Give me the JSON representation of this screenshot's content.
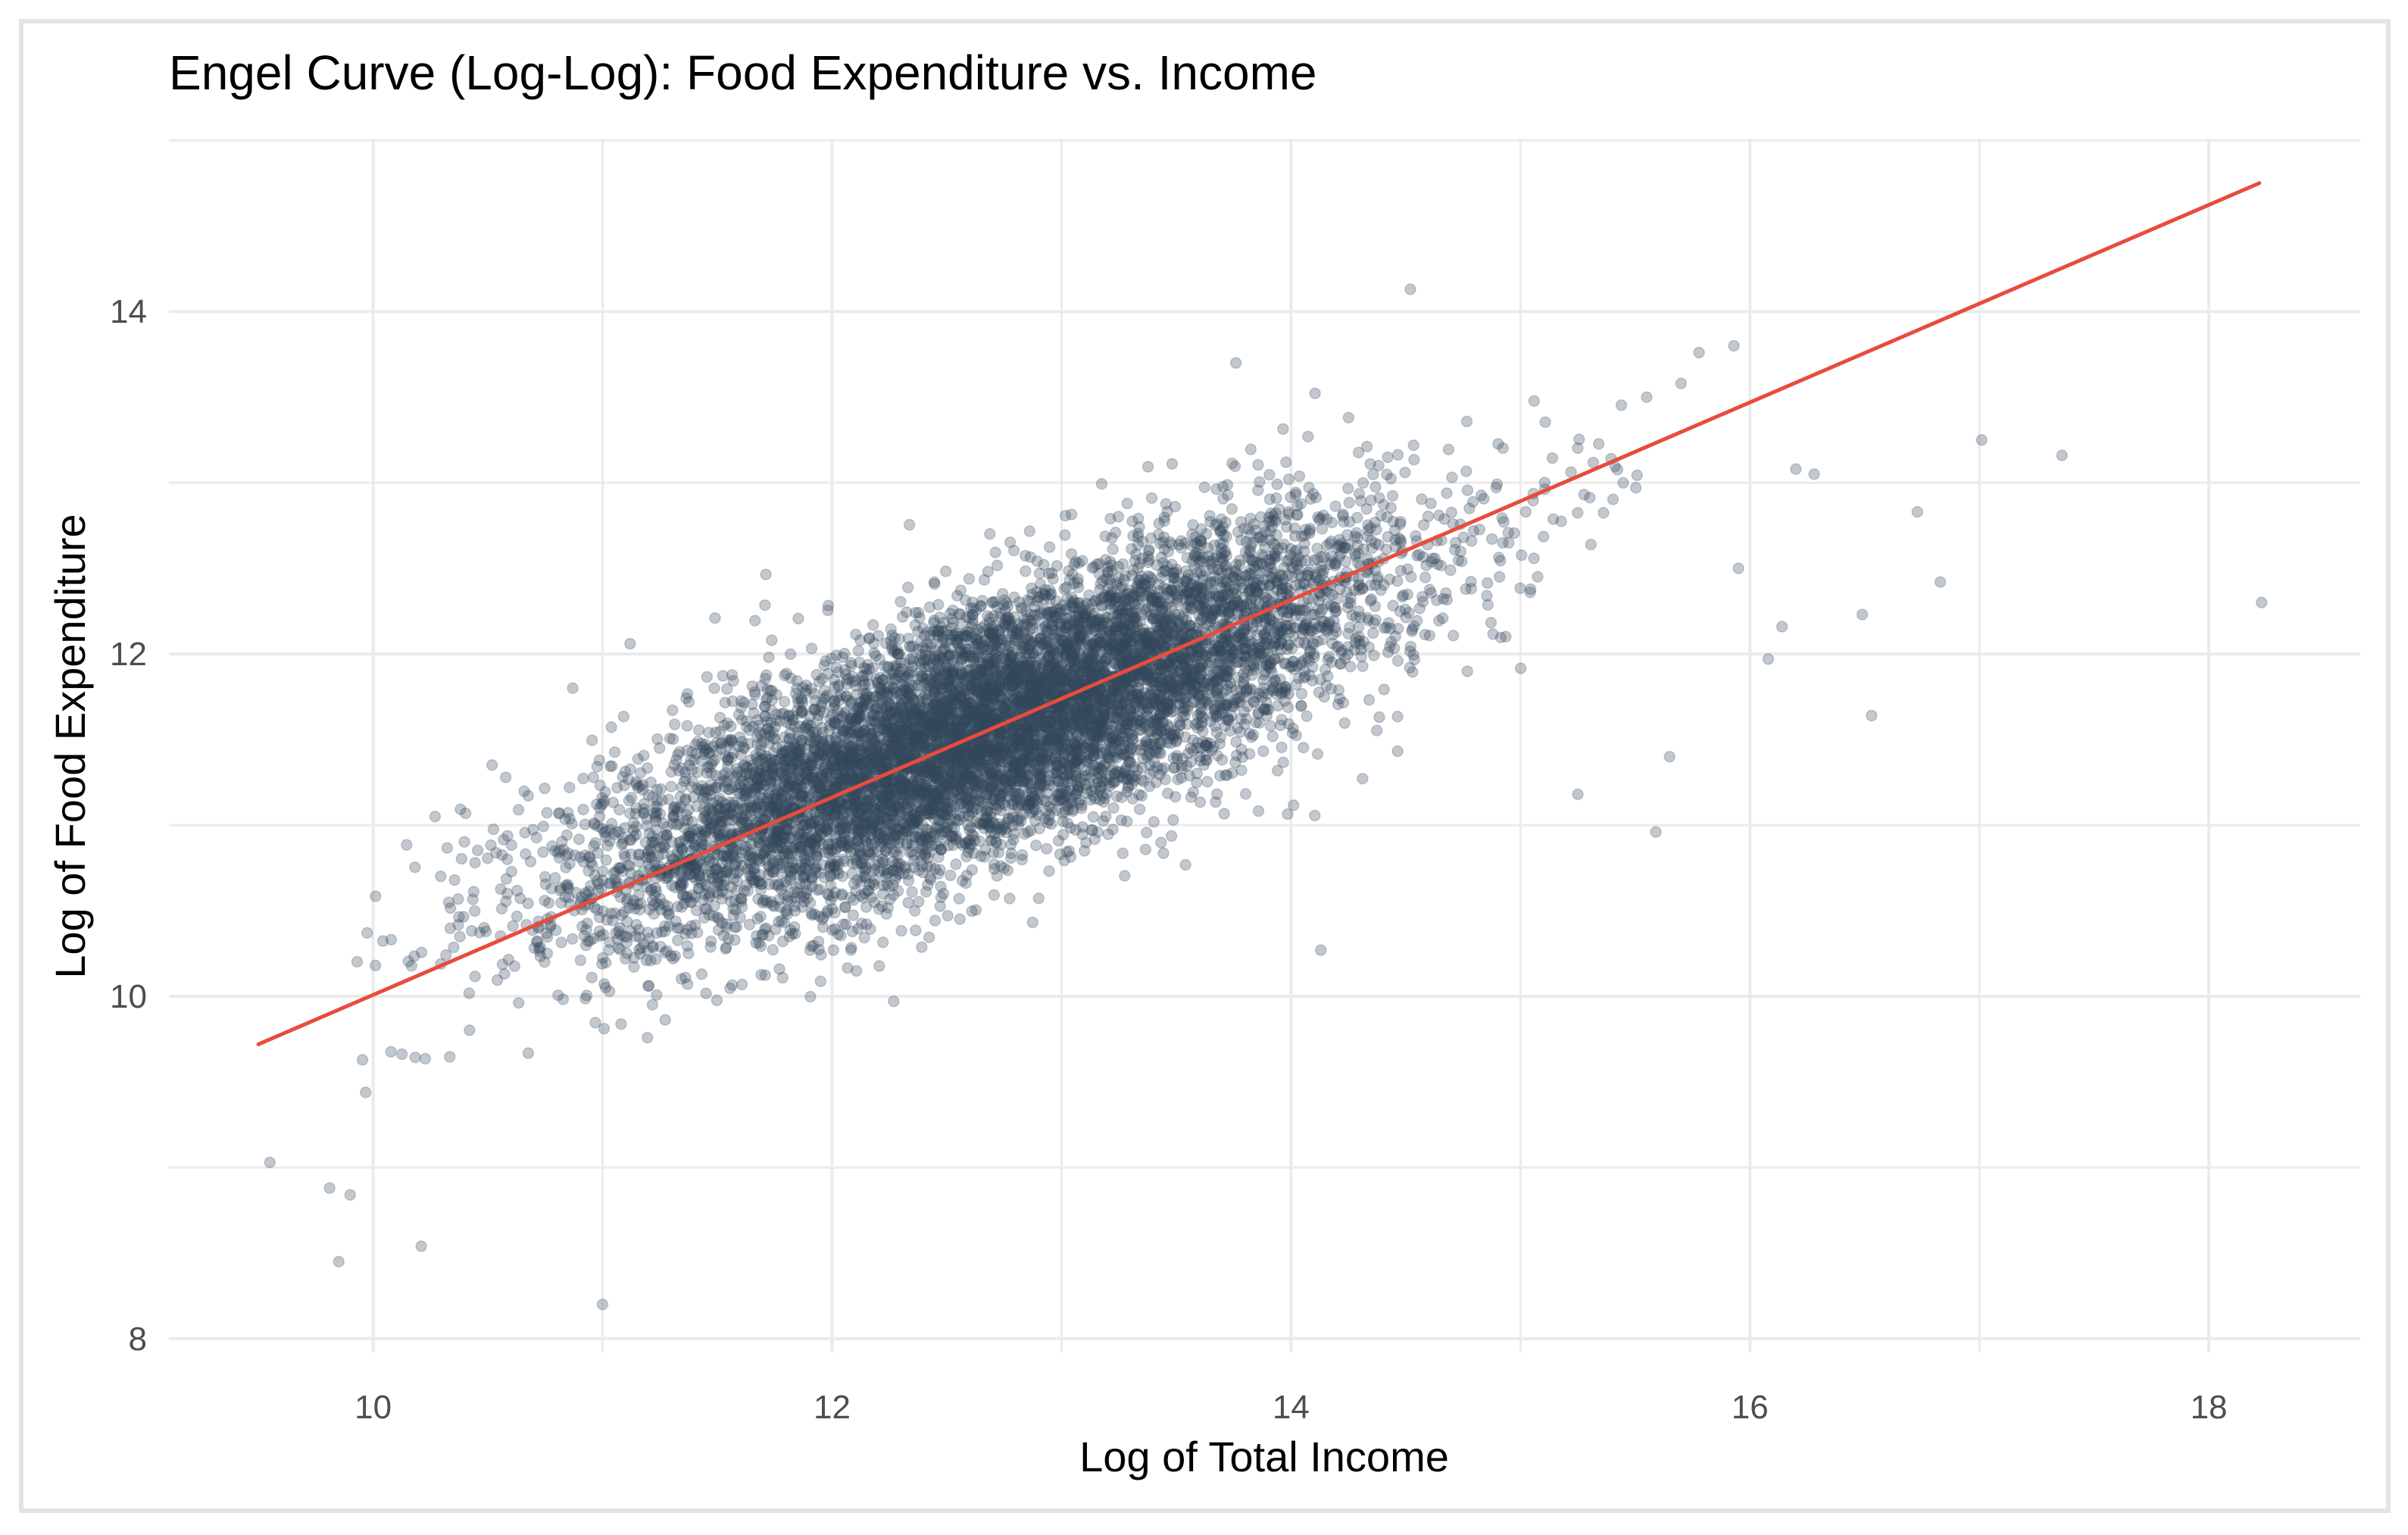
{
  "chart_data": {
    "type": "scatter",
    "title": "Engel Curve (Log-Log): Food Expenditure vs. Income",
    "xlabel": "Log of Total Income",
    "ylabel": "Log of Food Expenditure",
    "xlim": [
      9.11,
      18.66
    ],
    "ylim": [
      7.92,
      15.01
    ],
    "x_ticks": [
      10,
      12,
      14,
      16,
      18
    ],
    "y_ticks": [
      8,
      10,
      12,
      14
    ],
    "grid": true,
    "legend": "none",
    "point_color": "#34495e",
    "point_alpha": 0.3,
    "line_color": "#e74c3c",
    "fit_line": {
      "x": [
        9.5,
        18.22
      ],
      "y": [
        9.72,
        14.75
      ]
    },
    "cloud": {
      "n": 9000,
      "x_mean": 12.7,
      "x_sd": 0.85,
      "intercept": 4.25,
      "slope": 0.577,
      "residual_sd": 0.36
    },
    "outliers": [
      {
        "x": 14.52,
        "y": 14.13
      },
      {
        "x": 13.76,
        "y": 13.7
      },
      {
        "x": 15.93,
        "y": 13.8
      },
      {
        "x": 17.01,
        "y": 13.25
      },
      {
        "x": 17.36,
        "y": 13.16
      },
      {
        "x": 18.23,
        "y": 12.3
      },
      {
        "x": 16.73,
        "y": 12.83
      },
      {
        "x": 16.83,
        "y": 12.42
      },
      {
        "x": 16.49,
        "y": 12.23
      },
      {
        "x": 16.53,
        "y": 11.64
      },
      {
        "x": 15.59,
        "y": 10.96
      },
      {
        "x": 11.0,
        "y": 8.2
      },
      {
        "x": 9.85,
        "y": 8.45
      },
      {
        "x": 10.21,
        "y": 8.54
      },
      {
        "x": 9.55,
        "y": 9.03
      },
      {
        "x": 14.13,
        "y": 10.27
      },
      {
        "x": 11.12,
        "y": 12.06
      },
      {
        "x": 11.49,
        "y": 12.21
      },
      {
        "x": 9.81,
        "y": 8.88
      },
      {
        "x": 9.9,
        "y": 8.84
      },
      {
        "x": 10.01,
        "y": 10.18
      },
      {
        "x": 16.14,
        "y": 12.16
      },
      {
        "x": 16.08,
        "y": 11.97
      },
      {
        "x": 15.7,
        "y": 13.58
      },
      {
        "x": 15.55,
        "y": 13.5
      },
      {
        "x": 16.2,
        "y": 13.08
      },
      {
        "x": 16.28,
        "y": 13.05
      },
      {
        "x": 15.95,
        "y": 12.5
      },
      {
        "x": 15.65,
        "y": 11.4
      },
      {
        "x": 15.25,
        "y": 11.18
      }
    ]
  }
}
